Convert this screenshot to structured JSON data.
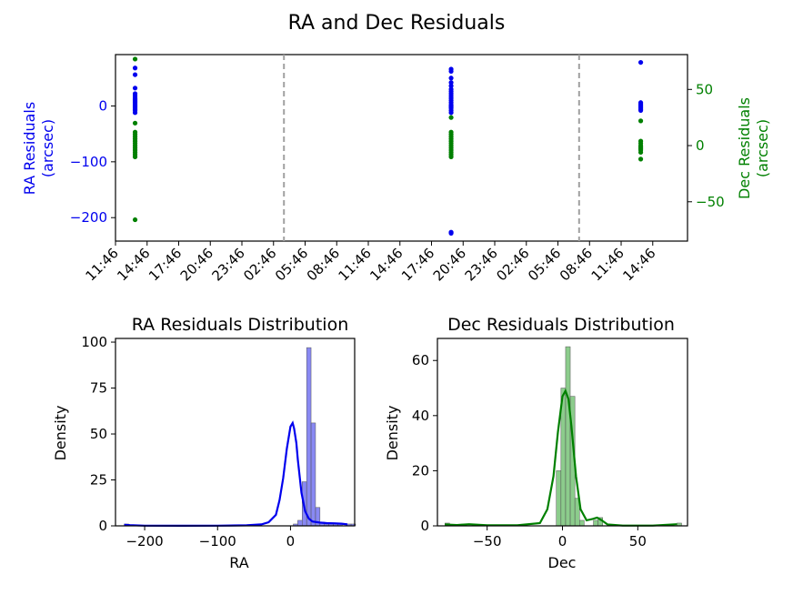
{
  "figure_title": "RA and Dec Residuals",
  "colors": {
    "ra": "#0000ee",
    "dec": "#008000",
    "hist_ra": "#6b6bf0",
    "hist_dec": "#6fbf6f",
    "vline": "#a0a0a0"
  },
  "chart_data": [
    {
      "type": "scatter",
      "title": "",
      "xlabel": "",
      "xticks": [
        "11:46",
        "14:46",
        "17:46",
        "20:46",
        "23:46",
        "02:46",
        "05:46",
        "08:46",
        "11:46",
        "14:46",
        "17:46",
        "20:46",
        "23:46",
        "02:46",
        "05:46",
        "08:46",
        "11:46",
        "14:46"
      ],
      "xlim": [
        0,
        18.1
      ],
      "day_boundaries": [
        5.33,
        14.67
      ],
      "left_axis": {
        "label_line1": "RA Residuals",
        "label_line2": "(arcsec)",
        "ticks": [
          0,
          -100,
          -200
        ],
        "tick_labels": [
          "0",
          "−100",
          "−200"
        ],
        "ylim": [
          -242,
          92
        ]
      },
      "right_axis": {
        "label_line1": "Dec Residuals",
        "label_line2": "(arcsec)",
        "ticks": [
          50,
          0,
          -50
        ],
        "tick_labels": [
          "50",
          "0",
          "−50"
        ],
        "ylim": [
          -85,
          81
        ]
      },
      "series": [
        {
          "name": "RA",
          "axis": "left",
          "x": [
            0.62,
            0.62,
            0.62,
            0.62,
            0.62,
            0.62,
            0.62,
            0.62,
            0.62,
            0.62,
            0.62,
            0.62,
            0.62,
            0.62,
            0.62,
            0.62,
            0.62,
            0.62,
            10.62,
            10.62,
            10.62,
            10.62,
            10.62,
            10.62,
            10.62,
            10.62,
            10.62,
            10.62,
            10.62,
            10.62,
            10.62,
            10.62,
            10.62,
            10.62,
            10.62,
            10.62,
            10.62,
            10.62,
            10.62,
            16.62,
            16.62,
            16.62,
            16.62,
            16.62,
            16.62,
            16.62,
            16.62,
            16.62
          ],
          "y": [
            68,
            56,
            32,
            22,
            18,
            14,
            12,
            10,
            8,
            6,
            4,
            2,
            0,
            -2,
            -4,
            -6,
            -8,
            -12,
            66,
            62,
            50,
            42,
            36,
            30,
            26,
            22,
            18,
            14,
            10,
            6,
            2,
            0,
            -2,
            -4,
            -8,
            -12,
            -226,
            -227,
            -228,
            78,
            6,
            4,
            2,
            0,
            -2,
            -4,
            -6,
            -8
          ]
        },
        {
          "name": "Dec",
          "axis": "right",
          "x": [
            0.62,
            0.62,
            0.62,
            0.62,
            0.62,
            0.62,
            0.62,
            0.62,
            0.62,
            0.62,
            0.62,
            0.62,
            0.62,
            0.62,
            0.62,
            10.62,
            10.62,
            10.62,
            10.62,
            10.62,
            10.62,
            10.62,
            10.62,
            10.62,
            10.62,
            10.62,
            10.62,
            10.62,
            16.62,
            16.62,
            16.62,
            16.62,
            16.62,
            16.62,
            16.62,
            16.62,
            16.62,
            16.62
          ],
          "y": [
            77,
            20,
            12,
            10,
            8,
            6,
            4,
            2,
            0,
            -2,
            -4,
            -6,
            -8,
            -10,
            -66,
            25,
            12,
            10,
            8,
            6,
            4,
            2,
            0,
            -2,
            -4,
            -6,
            -8,
            -10,
            22,
            4,
            2,
            0,
            -1,
            -2,
            -3,
            -4,
            -6,
            -12
          ]
        }
      ]
    },
    {
      "type": "histogram",
      "title": "RA Residuals Distribution",
      "xlabel": "RA",
      "ylabel": "Density",
      "xlim": [
        -240,
        88
      ],
      "ylim": [
        0,
        102
      ],
      "xticks": [
        -200,
        -100,
        0
      ],
      "xtick_labels": [
        "−200",
        "−100",
        "0"
      ],
      "yticks": [
        0,
        25,
        50,
        75,
        100
      ],
      "ytick_labels": [
        "0",
        "25",
        "50",
        "75",
        "100"
      ],
      "bins": {
        "edges_start": -228,
        "bin_width": 6.1,
        "counts": [
          1,
          0,
          0,
          0,
          0,
          0,
          0,
          0,
          0,
          0,
          0,
          0,
          0,
          0,
          0,
          0,
          0,
          0,
          0,
          0,
          0,
          0,
          0,
          0,
          0,
          0,
          0,
          0,
          0,
          0,
          0,
          0,
          0,
          0,
          0,
          0,
          0,
          0,
          1,
          3,
          24,
          97,
          56,
          10,
          2,
          1,
          1,
          1,
          1,
          0,
          1,
          1
        ]
      },
      "kde": {
        "x": [
          -228,
          -220,
          -200,
          -150,
          -100,
          -60,
          -40,
          -30,
          -20,
          -15,
          -10,
          -5,
          0,
          3,
          5,
          8,
          10,
          15,
          20,
          25,
          30,
          40,
          50,
          60,
          70,
          78
        ],
        "y": [
          0.6,
          0.4,
          0.1,
          0.05,
          0.1,
          0.3,
          0.8,
          2,
          6,
          14,
          26,
          42,
          54,
          56,
          53,
          45,
          36,
          18,
          8,
          4,
          2.4,
          1.8,
          1.5,
          1.4,
          1.2,
          0.8
        ]
      }
    },
    {
      "type": "histogram",
      "title": "Dec Residuals Distribution",
      "xlabel": "Dec",
      "ylabel": "Density",
      "xlim": [
        -83,
        83
      ],
      "ylim": [
        0,
        68
      ],
      "xticks": [
        -50,
        0,
        50
      ],
      "xtick_labels": [
        "−50",
        "0",
        "50"
      ],
      "yticks": [
        0,
        20,
        40,
        60
      ],
      "ytick_labels": [
        "0",
        "20",
        "40",
        "60"
      ],
      "bins": {
        "edges_start": -78,
        "bin_width": 3.08,
        "counts": [
          1,
          0,
          0,
          0,
          0,
          0,
          0,
          0,
          0,
          0,
          0,
          0,
          0,
          0,
          0,
          0,
          0,
          0,
          0,
          0,
          0,
          0,
          0,
          0,
          20,
          50,
          65,
          47,
          10,
          2,
          0,
          0,
          2,
          3,
          0,
          0,
          0,
          0,
          0,
          0,
          0,
          0,
          0,
          0,
          0,
          0,
          0,
          0,
          0,
          0,
          1
        ]
      },
      "kde": {
        "x": [
          -78,
          -70,
          -62,
          -50,
          -30,
          -15,
          -10,
          -6,
          -3,
          0,
          2,
          4,
          6,
          9,
          12,
          16,
          20,
          23,
          26,
          30,
          40,
          60,
          76
        ],
        "y": [
          0.5,
          0.3,
          0.6,
          0.2,
          0.2,
          1,
          6,
          18,
          34,
          47,
          49,
          46,
          36,
          18,
          6,
          2,
          2.5,
          3,
          2,
          0.5,
          0.1,
          0.1,
          0.6
        ]
      }
    }
  ]
}
